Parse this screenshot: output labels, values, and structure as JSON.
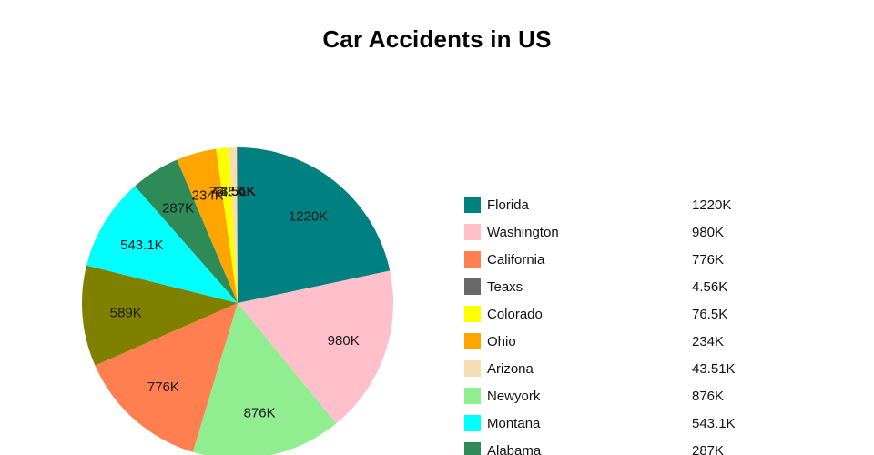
{
  "title": "Car Accidents in US",
  "chart_data": {
    "type": "pie",
    "title": "Car Accidents in US",
    "unit": "K",
    "legend_position": "right",
    "sort": "descending-clockwise-from-top",
    "slices": [
      {
        "label": "Florida",
        "value": 1220,
        "display": "1220K",
        "color": "#008080"
      },
      {
        "label": "Washington",
        "value": 980,
        "display": "980K",
        "color": "#FFC0CB"
      },
      {
        "label": "Newyork",
        "value": 876,
        "display": "876K",
        "color": "#90EE90"
      },
      {
        "label": "California",
        "value": 776,
        "display": "776K",
        "color": "#FF7F50"
      },
      {
        "label": "",
        "value": 589,
        "display": "589K",
        "color": "#808000"
      },
      {
        "label": "Montana",
        "value": 543.1,
        "display": "543.1K",
        "color": "#00FFFF"
      },
      {
        "label": "Alabama",
        "value": 287,
        "display": "287K",
        "color": "#2E8B57"
      },
      {
        "label": "Ohio",
        "value": 234,
        "display": "234K",
        "color": "#FFA500"
      },
      {
        "label": "Colorado",
        "value": 76.5,
        "display": "76.5K",
        "color": "#FFFF00"
      },
      {
        "label": "Arizona",
        "value": 43.51,
        "display": "43.51K",
        "color": "#F5DEB3"
      },
      {
        "label": "Teaxs",
        "value": 4.56,
        "display": "4.56K",
        "color": "#696969"
      }
    ],
    "legend": [
      {
        "label": "Florida",
        "display": "1220K",
        "color": "#008080"
      },
      {
        "label": "Washington",
        "display": "980K",
        "color": "#FFC0CB"
      },
      {
        "label": "California",
        "display": "776K",
        "color": "#FF7F50"
      },
      {
        "label": "Teaxs",
        "display": "4.56K",
        "color": "#696969"
      },
      {
        "label": "Colorado",
        "display": "76.5K",
        "color": "#FFFF00"
      },
      {
        "label": "Ohio",
        "display": "234K",
        "color": "#FFA500"
      },
      {
        "label": "Arizona",
        "display": "43.51K",
        "color": "#F5DEB3"
      },
      {
        "label": "Newyork",
        "display": "876K",
        "color": "#90EE90"
      },
      {
        "label": "Montana",
        "display": "543.1K",
        "color": "#00FFFF"
      },
      {
        "label": "Alabama",
        "display": "287K",
        "color": "#2E8B57"
      }
    ]
  }
}
